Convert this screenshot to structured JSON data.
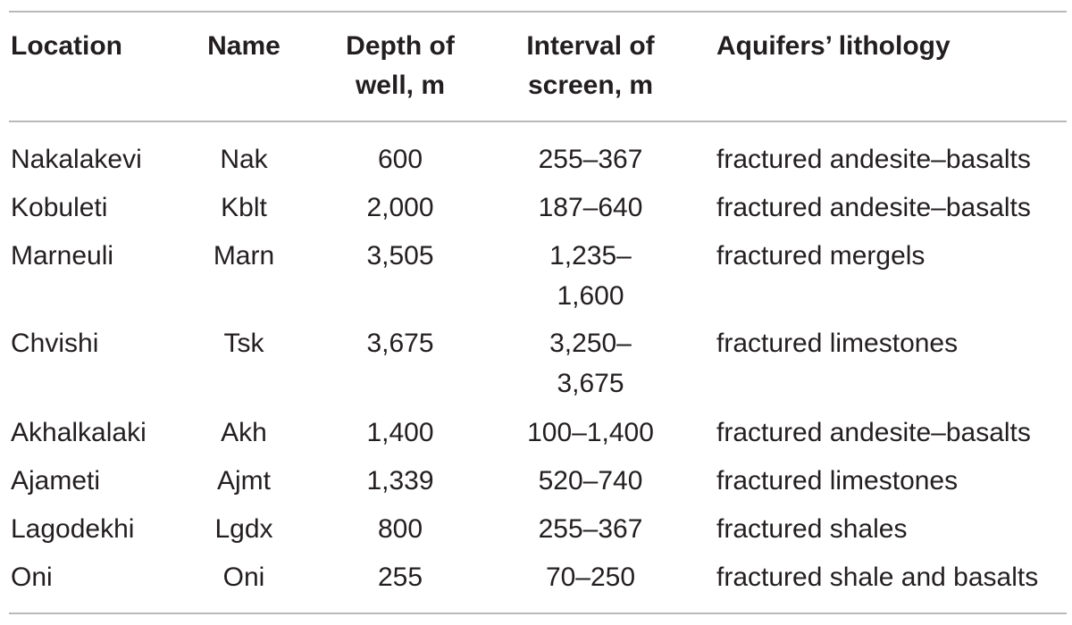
{
  "table": {
    "headers": {
      "location": "Location",
      "name": "Name",
      "depth_line1": "Depth of",
      "depth_line2": "well, m",
      "interval_line1": "Interval of",
      "interval_line2": "screen, m",
      "lithology": "Aquifers’ lithology"
    },
    "rows": [
      {
        "location": "Nakalakevi",
        "name": "Nak",
        "depth": "600",
        "interval": "255–367",
        "lithology": "fractured andesite–basalts"
      },
      {
        "location": "Kobuleti",
        "name": "Kblt",
        "depth": "2,000",
        "interval": "187–640",
        "lithology": "fractured andesite–basalts"
      },
      {
        "location": "Marneuli",
        "name": "Marn",
        "depth": "3,505",
        "interval": "1,235–1,600",
        "lithology": "fractured mergels"
      },
      {
        "location": "Chvishi",
        "name": "Tsk",
        "depth": "3,675",
        "interval": "3,250–3,675",
        "lithology": "fractured limestones"
      },
      {
        "location": "Akhalkalaki",
        "name": "Akh",
        "depth": "1,400",
        "interval": "100–1,400",
        "lithology": "fractured andesite–basalts"
      },
      {
        "location": "Ajameti",
        "name": "Ajmt",
        "depth": "1,339",
        "interval": "520–740",
        "lithology": "fractured limestones"
      },
      {
        "location": "Lagodekhi",
        "name": "Lgdx",
        "depth": "800",
        "interval": "255–367",
        "lithology": "fractured shales"
      },
      {
        "location": "Oni",
        "name": "Oni",
        "depth": "255",
        "interval": "70–250",
        "lithology": "fractured shale and basalts"
      }
    ]
  }
}
